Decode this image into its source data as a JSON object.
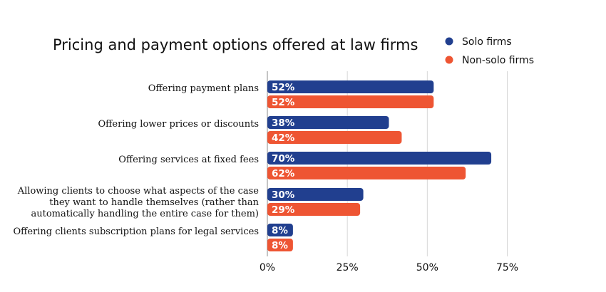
{
  "chart_data": {
    "type": "bar",
    "orientation": "horizontal",
    "title": "Pricing and payment options offered at law firms",
    "categories": [
      [
        "Offering payment plans"
      ],
      [
        "Offering lower prices or discounts"
      ],
      [
        "Offering services at fixed fees"
      ],
      [
        "Allowing clients to choose what aspects of the case",
        "they want to handle themselves (rather than",
        "automatically handling the entire case for them)"
      ],
      [
        "Offering clients subscription plans for legal services"
      ]
    ],
    "series": [
      {
        "name": "Solo firms",
        "color": "#213f8f",
        "values": [
          52,
          38,
          70,
          30,
          8
        ],
        "labels": [
          "52%",
          "38%",
          "70%",
          "30%",
          "8%"
        ]
      },
      {
        "name": "Non-solo firms",
        "color": "#ee5533",
        "values": [
          52,
          42,
          62,
          29,
          8
        ],
        "labels": [
          "52%",
          "42%",
          "62%",
          "29%",
          "8%"
        ]
      }
    ],
    "xlim": [
      0,
      75
    ],
    "xticks": [
      0,
      25,
      50,
      75
    ],
    "xtick_labels": [
      "0%",
      "25%",
      "50%",
      "75%"
    ],
    "grid": true,
    "legend_position": "top-right"
  }
}
